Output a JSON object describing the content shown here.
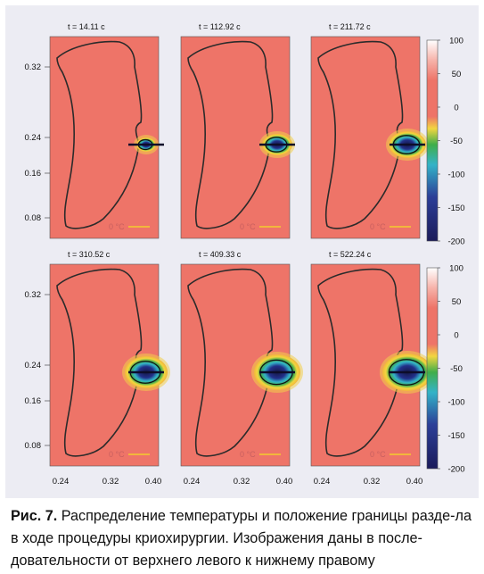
{
  "figure": {
    "panels": [
      {
        "time_label": "t = 14.11 c"
      },
      {
        "time_label": "t = 112.92 c"
      },
      {
        "time_label": "t = 211.72 c"
      },
      {
        "time_label": "t = 310.52 c"
      },
      {
        "time_label": "t = 409.33 c"
      },
      {
        "time_label": "t = 522.24 c"
      }
    ],
    "iso_label": "0 °C",
    "y_ticks": [
      "0.32",
      "0.24",
      "0.16",
      "0.08"
    ],
    "x_ticks": [
      "0.24",
      "0.32",
      "0.40"
    ],
    "colorbar_ticks": [
      "100",
      "50",
      "0",
      "-50",
      "-100",
      "-150",
      "-200"
    ],
    "colors": {
      "background": "#ee7468",
      "iso_line": "#f2b63c",
      "outline": "#2b2b2b",
      "colorbar": [
        "#ffffff",
        "#ee7468",
        "#f2d640",
        "#3fae4a",
        "#33b3c8",
        "#2c3f98",
        "#1b1b5a"
      ]
    }
  },
  "caption": {
    "label": "Рис. 7.",
    "text": "Распределение температуры и положение границы разде-ла в ходе процедуры криохирургии. Изображения даны в после-довательности от верхнего левого к нижнему правому"
  }
}
